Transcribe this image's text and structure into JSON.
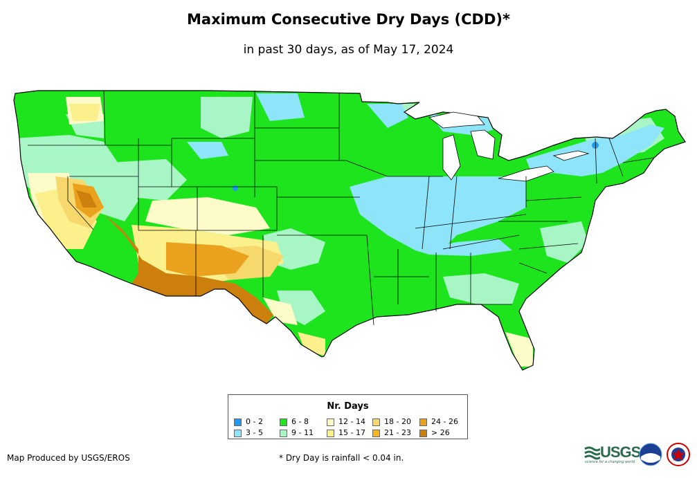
{
  "title": "Maximum Consecutive Dry Days (CDD)*",
  "subtitle": "in past 30 days, as of May 17, 2024",
  "legend": {
    "title": "Nr. Days",
    "items": [
      {
        "label": "0 - 2",
        "color": "#1e9bf0"
      },
      {
        "label": "3 - 5",
        "color": "#8ee4f8"
      },
      {
        "label": "6 - 8",
        "color": "#1ee41e"
      },
      {
        "label": "9 - 11",
        "color": "#a8f5c6"
      },
      {
        "label": "12 - 14",
        "color": "#fdfbc8"
      },
      {
        "label": "15 - 17",
        "color": "#fbf08c"
      },
      {
        "label": "18 - 20",
        "color": "#f7d86c"
      },
      {
        "label": "21 - 23",
        "color": "#f5b520"
      },
      {
        "label": "24 - 26",
        "color": "#e9a11e"
      },
      {
        "label": "> 26",
        "color": "#cc7f0c"
      }
    ]
  },
  "footer": {
    "producer": "Map Produced by USGS/EROS",
    "note": "* Dry Day is rainfall < 0.04 in."
  },
  "logos": {
    "usgs": "USGS",
    "usgs_tagline": "science for a changing world",
    "noaa": "noaa",
    "nws": "nws"
  },
  "map": {
    "base_color": "#1ee41e",
    "border_color": "#000000"
  }
}
